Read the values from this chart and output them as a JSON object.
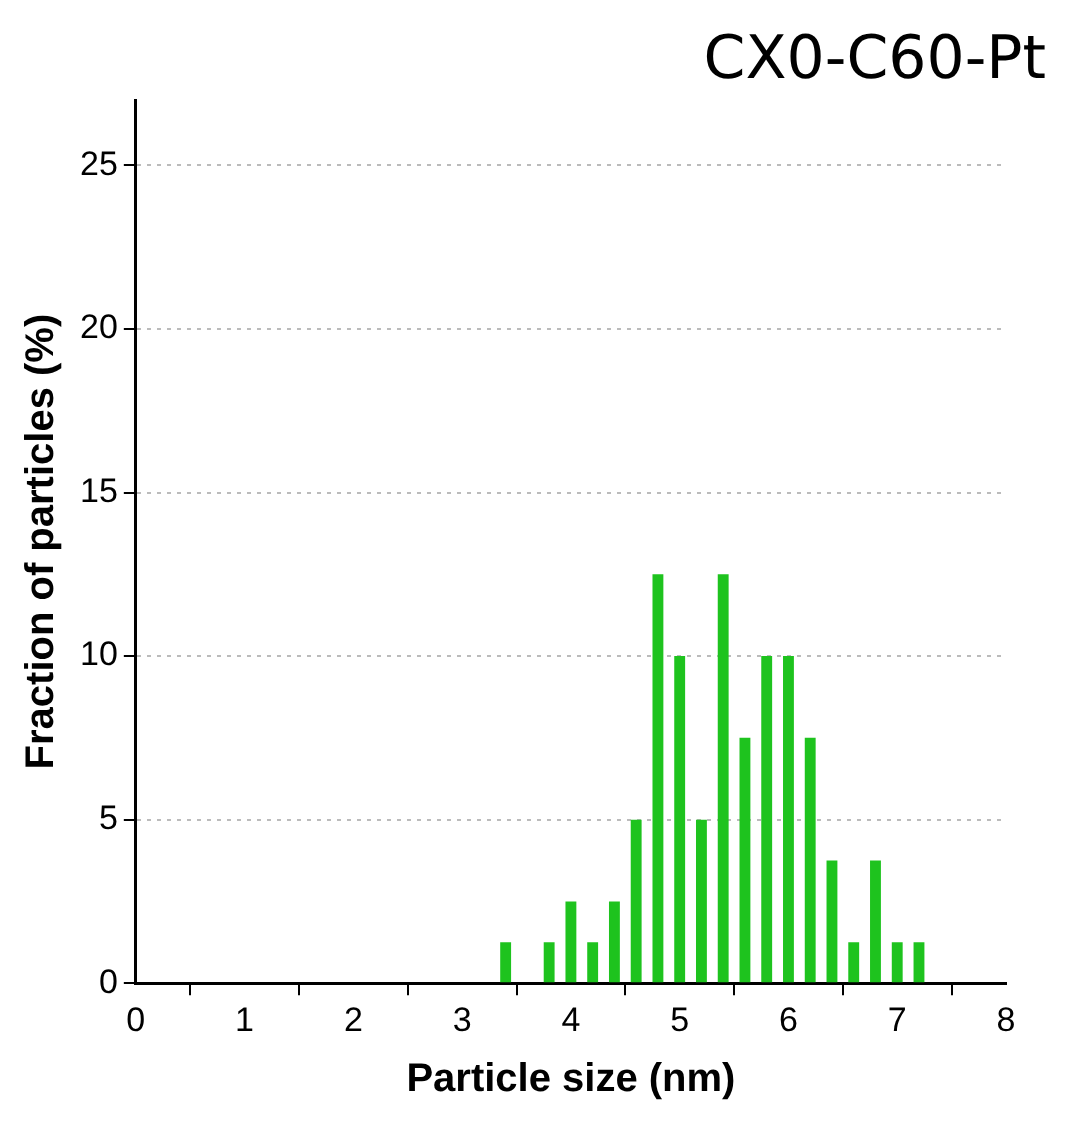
{
  "chart_data": {
    "type": "histogram",
    "title": "CX0-C60-Pt",
    "xlabel": "Particle size (nm)",
    "ylabel": "Fraction of particles (%)",
    "bins": [
      3.3,
      3.5,
      3.7,
      3.9,
      4.1,
      4.3,
      4.5,
      4.7,
      4.9,
      5.1,
      5.3,
      5.5,
      5.7,
      5.9,
      6.1,
      6.3,
      6.5,
      6.7,
      6.9,
      7.1,
      7.3
    ],
    "values": [
      1.25,
      0,
      1.25,
      2.5,
      1.25,
      2.5,
      5,
      12.5,
      10,
      5,
      12.5,
      7.5,
      10,
      10,
      7.5,
      3.75,
      1.25,
      3.75,
      1.25,
      1.25
    ],
    "color": "#1ec31e",
    "xlim": [
      0,
      8
    ],
    "xticks": [
      0,
      1,
      2,
      3,
      4,
      5,
      6,
      7,
      8
    ],
    "ylim": [
      0,
      27
    ],
    "yticks": [
      0,
      5,
      10,
      15,
      20,
      25
    ],
    "grid": "y"
  }
}
